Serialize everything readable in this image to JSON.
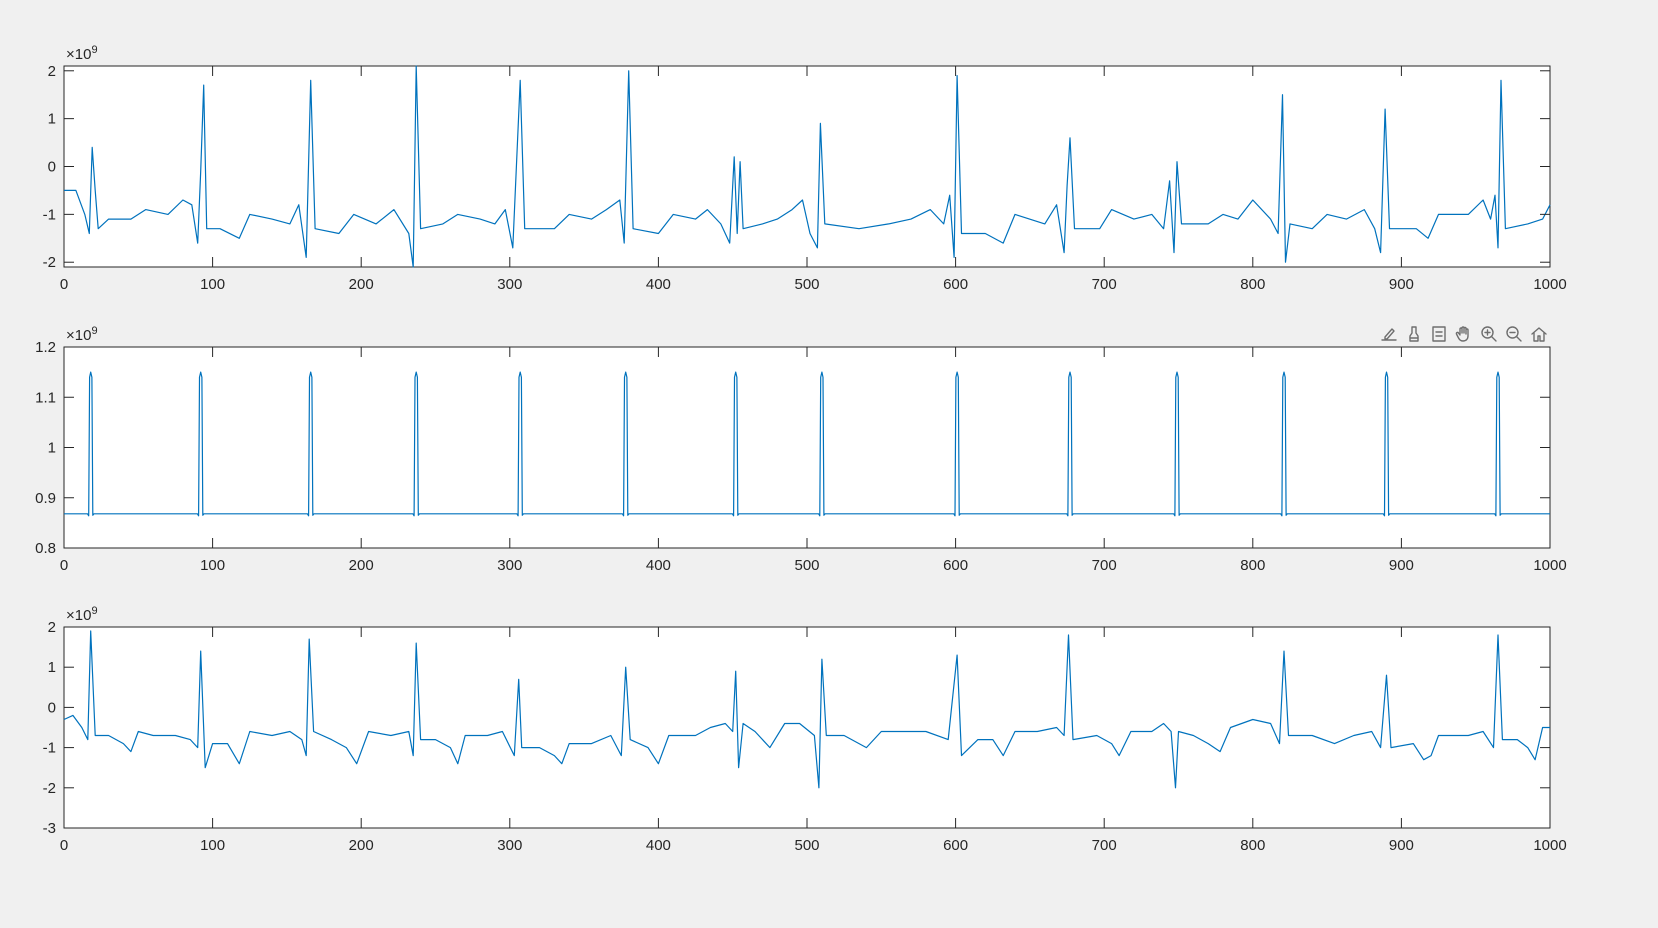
{
  "toolbar": {
    "buttons": [
      {
        "icon": "export-brush-icon"
      },
      {
        "icon": "brush-data-icon"
      },
      {
        "icon": "datatip-icon"
      },
      {
        "icon": "pan-hand-icon"
      },
      {
        "icon": "zoom-in-icon"
      },
      {
        "icon": "zoom-out-icon"
      },
      {
        "icon": "restore-view-home-icon"
      }
    ]
  },
  "colors": {
    "trace": "#0072bd",
    "axes": "#262626",
    "figure_bg": "#f0f0f0"
  },
  "chart_data": [
    {
      "type": "line",
      "title": "",
      "xlabel": "",
      "ylabel": "",
      "xlim": [
        0,
        1000
      ],
      "ylim": [
        -2.1,
        2.1
      ],
      "exponent": "×10",
      "exponent_power": "9",
      "x_ticks": [
        0,
        100,
        200,
        300,
        400,
        500,
        600,
        700,
        800,
        900,
        1000
      ],
      "x_tick_labels": [
        "0",
        "100",
        "200",
        "300",
        "400",
        "500",
        "600",
        "700",
        "800",
        "900",
        "1000"
      ],
      "y_ticks": [
        -2,
        -1,
        0,
        1,
        2
      ],
      "y_tick_labels": [
        "-2",
        "-1",
        "0",
        "1",
        "2"
      ],
      "grid": false,
      "units": "×10^9",
      "series_points": [
        [
          0,
          -0.5
        ],
        [
          8,
          -0.5
        ],
        [
          14,
          -1.0
        ],
        [
          17,
          -1.4
        ],
        [
          19,
          0.4
        ],
        [
          21,
          -0.5
        ],
        [
          23,
          -1.3
        ],
        [
          30,
          -1.1
        ],
        [
          45,
          -1.1
        ],
        [
          55,
          -0.9
        ],
        [
          70,
          -1.0
        ],
        [
          80,
          -0.7
        ],
        [
          86,
          -0.8
        ],
        [
          90,
          -1.6
        ],
        [
          92,
          -0.1
        ],
        [
          94,
          1.7
        ],
        [
          96,
          -1.3
        ],
        [
          105,
          -1.3
        ],
        [
          118,
          -1.5
        ],
        [
          125,
          -1.0
        ],
        [
          140,
          -1.1
        ],
        [
          152,
          -1.2
        ],
        [
          158,
          -0.8
        ],
        [
          163,
          -1.9
        ],
        [
          166,
          1.8
        ],
        [
          169,
          -1.3
        ],
        [
          185,
          -1.4
        ],
        [
          195,
          -1.0
        ],
        [
          210,
          -1.2
        ],
        [
          222,
          -0.9
        ],
        [
          232,
          -1.4
        ],
        [
          235,
          -2.1
        ],
        [
          237,
          2.1
        ],
        [
          240,
          -1.3
        ],
        [
          255,
          -1.2
        ],
        [
          265,
          -1.0
        ],
        [
          280,
          -1.1
        ],
        [
          290,
          -1.2
        ],
        [
          297,
          -0.9
        ],
        [
          302,
          -1.7
        ],
        [
          307,
          1.8
        ],
        [
          310,
          -1.3
        ],
        [
          330,
          -1.3
        ],
        [
          340,
          -1.0
        ],
        [
          355,
          -1.1
        ],
        [
          365,
          -0.9
        ],
        [
          374,
          -0.7
        ],
        [
          377,
          -1.6
        ],
        [
          380,
          2.0
        ],
        [
          383,
          -1.3
        ],
        [
          400,
          -1.4
        ],
        [
          410,
          -1.0
        ],
        [
          425,
          -1.1
        ],
        [
          433,
          -0.9
        ],
        [
          442,
          -1.2
        ],
        [
          448,
          -1.6
        ],
        [
          451,
          0.2
        ],
        [
          453,
          -1.4
        ],
        [
          455,
          0.1
        ],
        [
          457,
          -1.3
        ],
        [
          470,
          -1.2
        ],
        [
          480,
          -1.1
        ],
        [
          490,
          -0.9
        ],
        [
          497,
          -0.7
        ],
        [
          502,
          -1.4
        ],
        [
          507,
          -1.7
        ],
        [
          509,
          0.9
        ],
        [
          512,
          -1.2
        ],
        [
          535,
          -1.3
        ],
        [
          555,
          -1.2
        ],
        [
          570,
          -1.1
        ],
        [
          583,
          -0.9
        ],
        [
          592,
          -1.2
        ],
        [
          596,
          -0.6
        ],
        [
          599,
          -1.9
        ],
        [
          601,
          1.9
        ],
        [
          604,
          -1.4
        ],
        [
          620,
          -1.4
        ],
        [
          632,
          -1.6
        ],
        [
          640,
          -1.0
        ],
        [
          660,
          -1.2
        ],
        [
          668,
          -0.8
        ],
        [
          673,
          -1.8
        ],
        [
          675,
          -0.4
        ],
        [
          677,
          0.6
        ],
        [
          680,
          -1.3
        ],
        [
          697,
          -1.3
        ],
        [
          705,
          -0.9
        ],
        [
          720,
          -1.1
        ],
        [
          732,
          -1.0
        ],
        [
          740,
          -1.3
        ],
        [
          744,
          -0.3
        ],
        [
          747,
          -1.8
        ],
        [
          749,
          0.1
        ],
        [
          752,
          -1.2
        ],
        [
          770,
          -1.2
        ],
        [
          780,
          -1.0
        ],
        [
          790,
          -1.1
        ],
        [
          800,
          -0.7
        ],
        [
          812,
          -1.1
        ],
        [
          817,
          -1.4
        ],
        [
          820,
          1.5
        ],
        [
          822,
          -2.0
        ],
        [
          825,
          -1.2
        ],
        [
          840,
          -1.3
        ],
        [
          850,
          -1.0
        ],
        [
          863,
          -1.1
        ],
        [
          875,
          -0.9
        ],
        [
          882,
          -1.3
        ],
        [
          886,
          -1.8
        ],
        [
          889,
          1.2
        ],
        [
          892,
          -1.3
        ],
        [
          910,
          -1.3
        ],
        [
          918,
          -1.5
        ],
        [
          925,
          -1.0
        ],
        [
          945,
          -1.0
        ],
        [
          955,
          -0.7
        ],
        [
          960,
          -1.1
        ],
        [
          963,
          -0.6
        ],
        [
          965,
          -1.7
        ],
        [
          967,
          1.8
        ],
        [
          970,
          -1.3
        ],
        [
          985,
          -1.2
        ],
        [
          995,
          -1.1
        ],
        [
          1000,
          -0.8
        ]
      ]
    },
    {
      "type": "line",
      "title": "",
      "xlabel": "",
      "ylabel": "",
      "xlim": [
        0,
        1000
      ],
      "ylim": [
        0.8,
        1.2
      ],
      "exponent": "×10",
      "exponent_power": "9",
      "x_ticks": [
        0,
        100,
        200,
        300,
        400,
        500,
        600,
        700,
        800,
        900,
        1000
      ],
      "x_tick_labels": [
        "0",
        "100",
        "200",
        "300",
        "400",
        "500",
        "600",
        "700",
        "800",
        "900",
        "1000"
      ],
      "y_ticks": [
        0.8,
        0.9,
        1.0,
        1.1,
        1.2
      ],
      "y_tick_labels": [
        "0.8",
        "0.9",
        "1",
        "1.1",
        "1.2"
      ],
      "grid": false,
      "units": "×10^9",
      "baseline": 0.868,
      "peak_value": 1.15,
      "peak_x": [
        18,
        92,
        166,
        237,
        307,
        378,
        452,
        510,
        601,
        677,
        749,
        821,
        890,
        965
      ]
    },
    {
      "type": "line",
      "title": "",
      "xlabel": "",
      "ylabel": "",
      "xlim": [
        0,
        1000
      ],
      "ylim": [
        -3,
        2
      ],
      "exponent": "×10",
      "exponent_power": "9",
      "x_ticks": [
        0,
        100,
        200,
        300,
        400,
        500,
        600,
        700,
        800,
        900,
        1000
      ],
      "x_tick_labels": [
        "0",
        "100",
        "200",
        "300",
        "400",
        "500",
        "600",
        "700",
        "800",
        "900",
        "1000"
      ],
      "y_ticks": [
        -3,
        -2,
        -1,
        0,
        1,
        2
      ],
      "y_tick_labels": [
        "-3",
        "-2",
        "-1",
        "0",
        "1",
        "2"
      ],
      "grid": false,
      "units": "×10^9",
      "series_points": [
        [
          0,
          -0.3
        ],
        [
          6,
          -0.2
        ],
        [
          12,
          -0.5
        ],
        [
          16,
          -0.8
        ],
        [
          18,
          1.9
        ],
        [
          21,
          -0.7
        ],
        [
          30,
          -0.7
        ],
        [
          40,
          -0.9
        ],
        [
          45,
          -1.1
        ],
        [
          50,
          -0.6
        ],
        [
          60,
          -0.7
        ],
        [
          75,
          -0.7
        ],
        [
          85,
          -0.8
        ],
        [
          90,
          -1.0
        ],
        [
          92,
          1.4
        ],
        [
          95,
          -1.5
        ],
        [
          100,
          -0.9
        ],
        [
          110,
          -0.9
        ],
        [
          118,
          -1.4
        ],
        [
          125,
          -0.6
        ],
        [
          140,
          -0.7
        ],
        [
          152,
          -0.6
        ],
        [
          160,
          -0.8
        ],
        [
          163,
          -1.2
        ],
        [
          165,
          1.7
        ],
        [
          168,
          -0.6
        ],
        [
          180,
          -0.8
        ],
        [
          190,
          -1.0
        ],
        [
          197,
          -1.4
        ],
        [
          205,
          -0.6
        ],
        [
          220,
          -0.7
        ],
        [
          232,
          -0.6
        ],
        [
          235,
          -1.2
        ],
        [
          237,
          1.6
        ],
        [
          240,
          -0.8
        ],
        [
          250,
          -0.8
        ],
        [
          260,
          -1.0
        ],
        [
          265,
          -1.4
        ],
        [
          270,
          -0.7
        ],
        [
          285,
          -0.7
        ],
        [
          295,
          -0.6
        ],
        [
          303,
          -1.2
        ],
        [
          306,
          0.7
        ],
        [
          308,
          -1.0
        ],
        [
          320,
          -1.0
        ],
        [
          330,
          -1.2
        ],
        [
          335,
          -1.4
        ],
        [
          340,
          -0.9
        ],
        [
          355,
          -0.9
        ],
        [
          368,
          -0.7
        ],
        [
          375,
          -1.2
        ],
        [
          378,
          1.0
        ],
        [
          381,
          -0.8
        ],
        [
          393,
          -1.0
        ],
        [
          400,
          -1.4
        ],
        [
          407,
          -0.7
        ],
        [
          425,
          -0.7
        ],
        [
          435,
          -0.5
        ],
        [
          445,
          -0.4
        ],
        [
          450,
          -0.6
        ],
        [
          452,
          0.9
        ],
        [
          454,
          -1.5
        ],
        [
          457,
          -0.4
        ],
        [
          465,
          -0.6
        ],
        [
          475,
          -1.0
        ],
        [
          485,
          -0.4
        ],
        [
          495,
          -0.4
        ],
        [
          505,
          -0.7
        ],
        [
          508,
          -2.0
        ],
        [
          510,
          1.2
        ],
        [
          513,
          -0.7
        ],
        [
          525,
          -0.7
        ],
        [
          540,
          -1.0
        ],
        [
          550,
          -0.6
        ],
        [
          565,
          -0.6
        ],
        [
          580,
          -0.6
        ],
        [
          595,
          -0.8
        ],
        [
          601,
          1.3
        ],
        [
          604,
          -1.2
        ],
        [
          615,
          -0.8
        ],
        [
          625,
          -0.8
        ],
        [
          632,
          -1.2
        ],
        [
          640,
          -0.6
        ],
        [
          655,
          -0.6
        ],
        [
          668,
          -0.5
        ],
        [
          673,
          -0.7
        ],
        [
          676,
          1.8
        ],
        [
          679,
          -0.8
        ],
        [
          695,
          -0.7
        ],
        [
          705,
          -0.9
        ],
        [
          710,
          -1.2
        ],
        [
          718,
          -0.6
        ],
        [
          732,
          -0.6
        ],
        [
          740,
          -0.4
        ],
        [
          745,
          -0.6
        ],
        [
          748,
          -2.0
        ],
        [
          750,
          -0.6
        ],
        [
          760,
          -0.7
        ],
        [
          770,
          -0.9
        ],
        [
          778,
          -1.1
        ],
        [
          785,
          -0.5
        ],
        [
          800,
          -0.3
        ],
        [
          812,
          -0.4
        ],
        [
          818,
          -0.9
        ],
        [
          821,
          1.4
        ],
        [
          824,
          -0.7
        ],
        [
          840,
          -0.7
        ],
        [
          855,
          -0.9
        ],
        [
          868,
          -0.7
        ],
        [
          880,
          -0.6
        ],
        [
          886,
          -1.0
        ],
        [
          890,
          0.8
        ],
        [
          893,
          -1.0
        ],
        [
          908,
          -0.9
        ],
        [
          915,
          -1.3
        ],
        [
          920,
          -1.2
        ],
        [
          925,
          -0.7
        ],
        [
          945,
          -0.7
        ],
        [
          955,
          -0.6
        ],
        [
          962,
          -1.0
        ],
        [
          965,
          1.8
        ],
        [
          968,
          -0.8
        ],
        [
          978,
          -0.8
        ],
        [
          985,
          -1.0
        ],
        [
          990,
          -1.3
        ],
        [
          995,
          -0.5
        ],
        [
          1000,
          -0.5
        ]
      ]
    }
  ]
}
